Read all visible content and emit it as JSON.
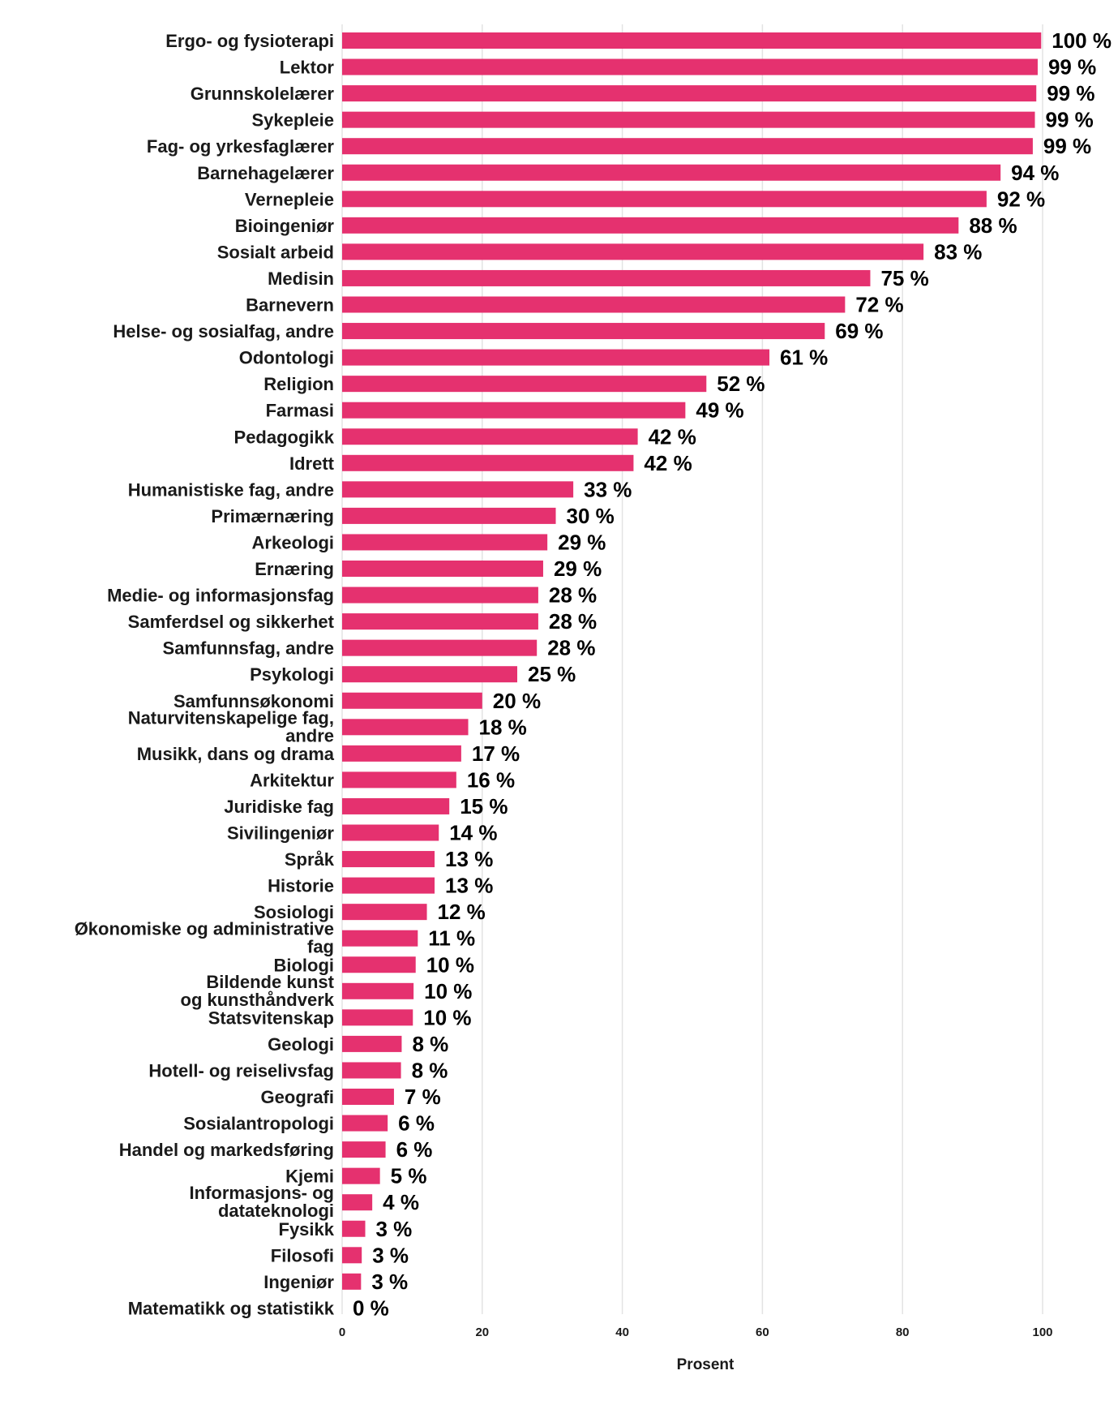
{
  "chart_data": {
    "type": "bar",
    "orientation": "horizontal",
    "xlabel": "Prosent",
    "xlim": [
      0,
      100
    ],
    "xticks": [
      "0",
      "20",
      "40",
      "60",
      "80",
      "100"
    ],
    "grid": true,
    "bar_color": "#e5316f",
    "value_suffix": " %",
    "categories": [
      "Ergo- og fysioterapi",
      "Lektor",
      "Grunnskolelærer",
      "Sykepleie",
      "Fag- og yrkesfaglærer",
      "Barnehagelærer",
      "Vernepleie",
      "Bioingeniør",
      "Sosialt arbeid",
      "Medisin",
      "Barnevern",
      "Helse- og sosialfag, andre",
      "Odontologi",
      "Religion",
      "Farmasi",
      "Pedagogikk",
      "Idrett",
      "Humanistiske fag, andre",
      "Primærnæring",
      "Arkeologi",
      "Ernæring",
      "Medie- og informasjonsfag",
      "Samferdsel og sikkerhet",
      "Samfunnsfag, andre",
      "Psykologi",
      "Samfunnsøkonomi",
      "Naturvitenskapelige fag,\nandre",
      "Musikk, dans og drama",
      "Arkitektur",
      "Juridiske fag",
      "Sivilingeniør",
      "Språk",
      "Historie",
      "Sosiologi",
      "Økonomiske og administrative\nfag",
      "Biologi",
      "Bildende kunst\nog kunsthåndverk",
      "Statsvitenskap",
      "Geologi",
      "Hotell- og reiselivsfag",
      "Geografi",
      "Sosialantropologi",
      "Handel og markedsføring",
      "Kjemi",
      "Informasjons- og\ndatateknologi",
      "Fysikk",
      "Filosofi",
      "Ingeniør",
      "Matematikk og statistikk"
    ],
    "values": [
      99.8,
      99.3,
      99.1,
      98.9,
      98.6,
      94.0,
      92.0,
      88.0,
      83.0,
      75.4,
      71.8,
      68.9,
      61.0,
      52.0,
      49.0,
      42.2,
      41.6,
      33.0,
      30.5,
      29.3,
      28.7,
      28.0,
      28.0,
      27.8,
      25.0,
      20.0,
      18.0,
      17.0,
      16.3,
      15.3,
      13.8,
      13.2,
      13.2,
      12.1,
      10.8,
      10.5,
      10.2,
      10.1,
      8.5,
      8.4,
      7.4,
      6.5,
      6.2,
      5.4,
      4.3,
      3.3,
      2.8,
      2.7,
      0.0
    ],
    "value_labels": [
      "100 %",
      "99 %",
      "99 %",
      "99 %",
      "99 %",
      "94 %",
      "92 %",
      "88 %",
      "83 %",
      "75 %",
      "72 %",
      "69 %",
      "61 %",
      "52 %",
      "49 %",
      "42 %",
      "42 %",
      "33 %",
      "30 %",
      "29 %",
      "29 %",
      "28 %",
      "28 %",
      "28 %",
      "25 %",
      "20 %",
      "18 %",
      "17 %",
      "16 %",
      "15 %",
      "14 %",
      "13 %",
      "13 %",
      "12 %",
      "11 %",
      "10 %",
      "10 %",
      "10 %",
      "8 %",
      "8 %",
      "7 %",
      "6 %",
      "6 %",
      "5 %",
      "4 %",
      "3 %",
      "3 %",
      "3 %",
      "0 %"
    ]
  }
}
